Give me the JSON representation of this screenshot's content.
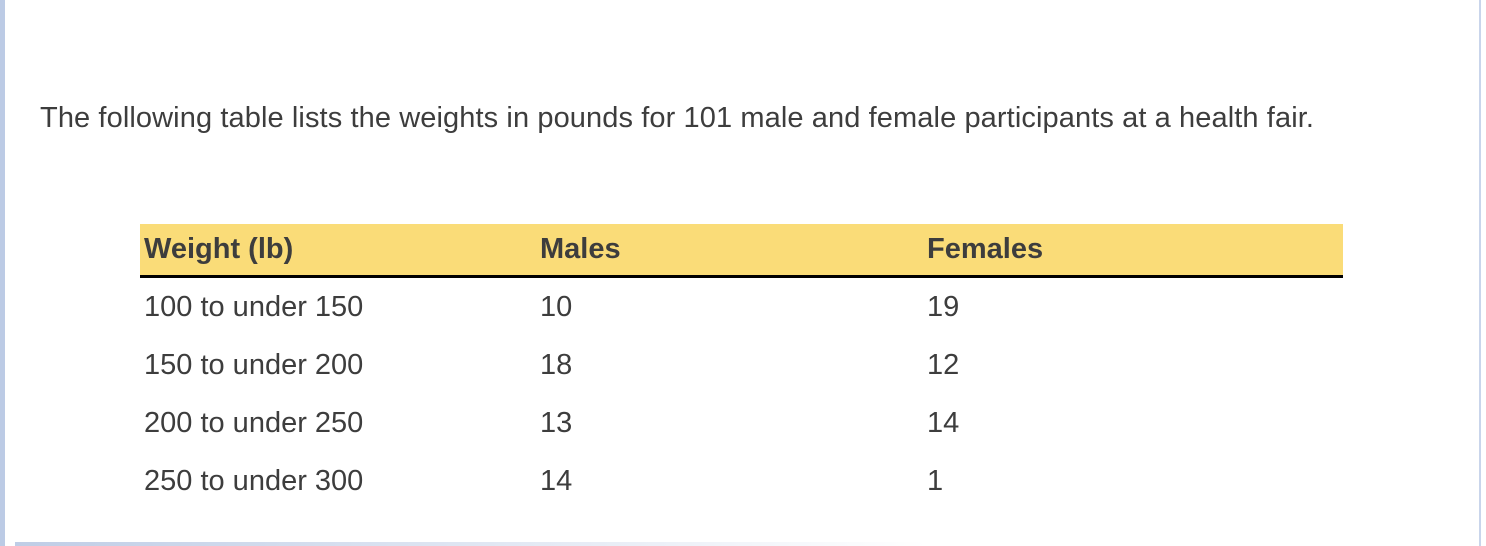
{
  "page": {
    "paragraph": "The following table lists the weights in pounds for 101 male and female participants at a health fair."
  },
  "table": {
    "columns": [
      "Weight (lb)",
      "Males",
      "Females"
    ],
    "rows": [
      {
        "weight": "100 to under 150",
        "males": "10",
        "females": "19"
      },
      {
        "weight": "150 to under 200",
        "males": "18",
        "females": "12"
      },
      {
        "weight": "200 to under 250",
        "males": "13",
        "females": "14"
      },
      {
        "weight": "250 to under 300",
        "males": "14",
        "females": "1"
      }
    ]
  },
  "colors": {
    "header_bg": "#FADC78",
    "text": "#3D3D3D",
    "header_border": "#000000",
    "left_bar": "#BCCBE5",
    "right_line": "#C9D5EB",
    "bottom_bar": "#BFCDE6"
  }
}
